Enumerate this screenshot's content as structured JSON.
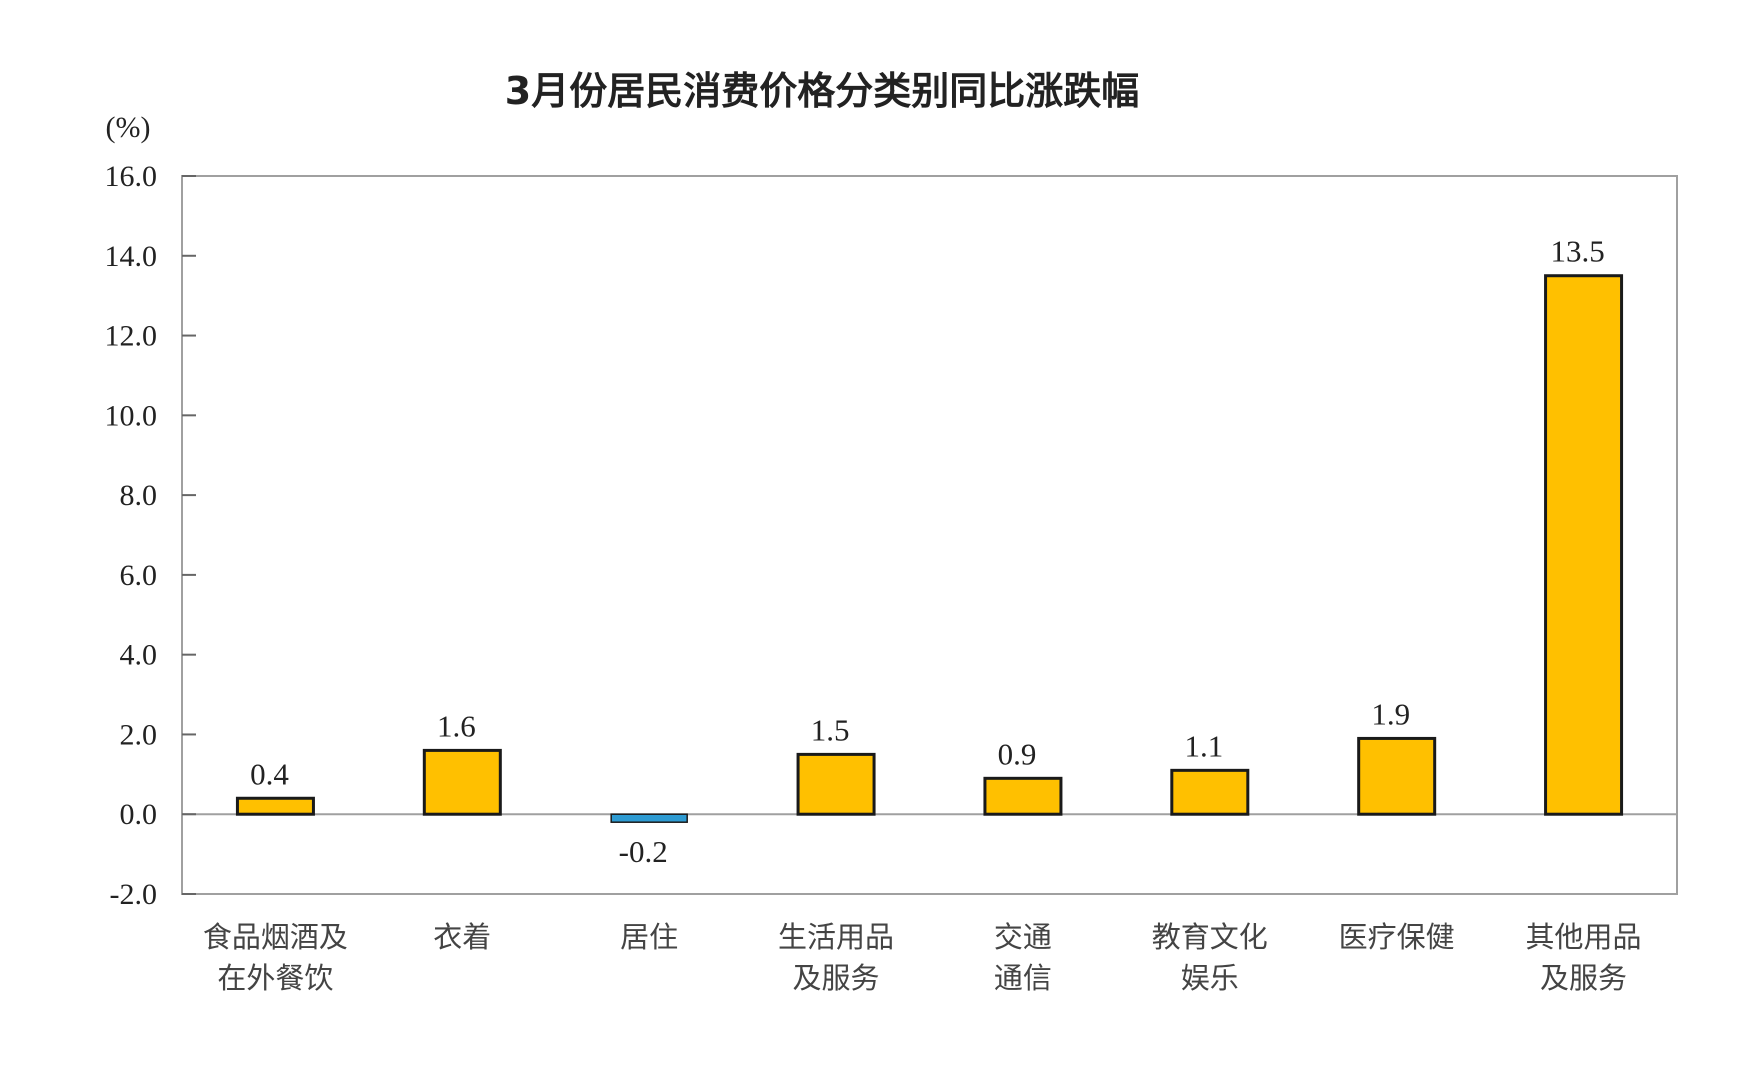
{
  "chart_data": {
    "type": "bar",
    "title": "3月份居民消费价格分类别同比涨跌幅",
    "ylabel": "(%)",
    "xlabel": "",
    "ylim": [
      -2.0,
      16.0
    ],
    "yticks": [
      "16.0",
      "14.0",
      "12.0",
      "10.0",
      "8.0",
      "6.0",
      "4.0",
      "2.0",
      "0.0",
      "-2.0"
    ],
    "grid": false,
    "categories": [
      [
        "食品烟酒及",
        "在外餐饮"
      ],
      [
        "衣着"
      ],
      [
        "居住"
      ],
      [
        "生活用品",
        "及服务"
      ],
      [
        "交通",
        "通信"
      ],
      [
        "教育文化",
        "娱乐"
      ],
      [
        "医疗保健"
      ],
      [
        "其他用品",
        "及服务"
      ]
    ],
    "values": [
      0.4,
      1.6,
      -0.2,
      1.5,
      0.9,
      1.1,
      1.9,
      13.5
    ],
    "data_labels": [
      "0.4",
      "1.6",
      "-0.2",
      "1.5",
      "0.9",
      "1.1",
      "1.9",
      "13.5"
    ],
    "colors": {
      "positive": "#FFC000",
      "negative": "#2E9BD2",
      "outline": "#1a1a1a",
      "frame": "#a0a0a0"
    }
  }
}
